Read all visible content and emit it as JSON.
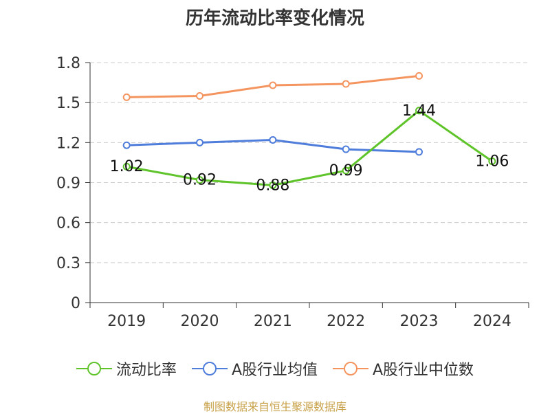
{
  "chart_data": {
    "type": "line",
    "title": "历年流动比率变化情况",
    "categories": [
      "2019",
      "2020",
      "2021",
      "2022",
      "2023",
      "2024"
    ],
    "ylim": [
      0,
      1.8
    ],
    "yticks": [
      "0",
      "0.3",
      "0.6",
      "0.9",
      "1.2",
      "1.5",
      "1.8"
    ],
    "grid": true,
    "legend_position": "bottom",
    "series": [
      {
        "name": "流动比率",
        "color": "#5ec42a",
        "values": [
          1.02,
          0.92,
          0.88,
          0.99,
          1.44,
          1.06
        ],
        "labels": [
          "1.02",
          "0.92",
          "0.88",
          "0.99",
          "1.44",
          "1.06"
        ]
      },
      {
        "name": "A股行业均值",
        "color": "#4f7ddb",
        "values": [
          1.18,
          1.2,
          1.22,
          1.15,
          1.13,
          null
        ]
      },
      {
        "name": "A股行业中位数",
        "color": "#f49560",
        "values": [
          1.54,
          1.55,
          1.63,
          1.64,
          1.7,
          null
        ]
      }
    ]
  },
  "footer": {
    "source": "制图数据来自恒生聚源数据库"
  }
}
